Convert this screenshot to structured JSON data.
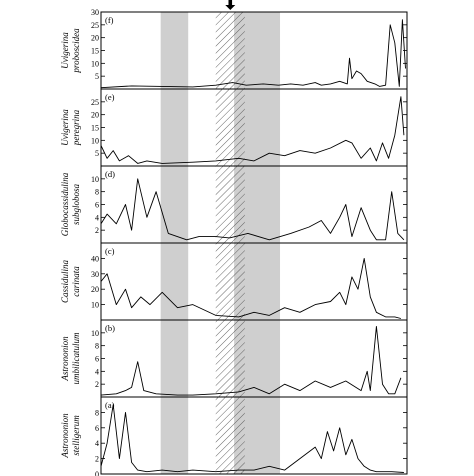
{
  "chart_data": {
    "type": "line",
    "shading": {
      "gray_bands": [
        [
          0.195,
          0.285
        ],
        [
          0.435,
          0.585
        ]
      ],
      "hatched_band": [
        0.375,
        0.47
      ],
      "band_fill": "#cfcfcf",
      "hatch_color": "#555555"
    },
    "marker": "down-arrow",
    "x_range": [
      0,
      1
    ],
    "panels": [
      {
        "letter": "(f)",
        "label_line1": "Uvigerina",
        "label_line2": "proboscidea",
        "ylim": [
          0,
          30
        ],
        "ticks": [
          0,
          5,
          10,
          15,
          20,
          25,
          30
        ],
        "tick_labels": [
          "",
          "5",
          "10",
          "15",
          "20",
          "25",
          "30"
        ],
        "x": [
          0.0,
          0.1,
          0.2,
          0.3,
          0.375,
          0.43,
          0.475,
          0.53,
          0.58,
          0.62,
          0.66,
          0.7,
          0.72,
          0.75,
          0.78,
          0.805,
          0.812,
          0.82,
          0.835,
          0.85,
          0.87,
          0.895,
          0.91,
          0.93,
          0.945,
          0.96,
          0.975,
          0.985,
          0.995
        ],
        "y": [
          0.5,
          1.2,
          1.0,
          0.8,
          1.5,
          2.5,
          1.5,
          2.0,
          1.5,
          2.0,
          1.5,
          2.5,
          1.5,
          2.0,
          3.0,
          2.0,
          12.0,
          4.0,
          7.0,
          6.0,
          3.0,
          2.0,
          1.0,
          1.5,
          25.0,
          18.0,
          1.0,
          27.0,
          8.0
        ]
      },
      {
        "letter": "(e)",
        "label_line1": "Uvigerina",
        "label_line2": "peregrina",
        "ylim": [
          0,
          30
        ],
        "ticks": [
          0,
          5,
          10,
          15,
          20,
          25
        ],
        "tick_labels": [
          "",
          "5",
          "10",
          "15",
          "20",
          "25"
        ],
        "x": [
          0.0,
          0.02,
          0.04,
          0.06,
          0.09,
          0.12,
          0.15,
          0.2,
          0.3,
          0.375,
          0.45,
          0.5,
          0.55,
          0.6,
          0.65,
          0.7,
          0.75,
          0.8,
          0.82,
          0.85,
          0.88,
          0.9,
          0.92,
          0.94,
          0.96,
          0.98,
          0.99
        ],
        "y": [
          8.0,
          3.0,
          6.0,
          2.0,
          4.0,
          1.0,
          2.0,
          1.0,
          1.5,
          2.0,
          3.0,
          2.0,
          5.0,
          4.0,
          6.0,
          5.0,
          7.0,
          10.0,
          9.0,
          3.0,
          7.0,
          2.0,
          9.0,
          3.0,
          12.0,
          27.0,
          12.0
        ]
      },
      {
        "letter": "(d)",
        "label_line1": "Globocassidulina",
        "label_line2": "subglobosa",
        "ylim": [
          0,
          12
        ],
        "ticks": [
          0,
          2,
          4,
          6,
          8,
          10
        ],
        "tick_labels": [
          "",
          "2",
          "4",
          "6",
          "8",
          "10"
        ],
        "x": [
          0.0,
          0.02,
          0.05,
          0.08,
          0.1,
          0.12,
          0.15,
          0.18,
          0.22,
          0.28,
          0.32,
          0.375,
          0.42,
          0.48,
          0.55,
          0.62,
          0.68,
          0.72,
          0.75,
          0.78,
          0.8,
          0.82,
          0.85,
          0.88,
          0.9,
          0.93,
          0.95,
          0.97,
          0.99
        ],
        "y": [
          3.0,
          4.5,
          3.0,
          6.0,
          2.0,
          10.0,
          4.0,
          8.0,
          1.5,
          0.5,
          1.0,
          1.0,
          0.8,
          1.5,
          0.5,
          1.5,
          2.5,
          3.5,
          1.5,
          4.0,
          6.0,
          1.0,
          5.5,
          2.0,
          0.5,
          0.5,
          8.0,
          1.5,
          0.5
        ]
      },
      {
        "letter": "(c)",
        "label_line1": "Cassidulina",
        "label_line2": "carinata",
        "ylim": [
          0,
          50
        ],
        "ticks": [
          0,
          10,
          20,
          30,
          40
        ],
        "tick_labels": [
          "",
          "10",
          "20",
          "30",
          "40"
        ],
        "x": [
          0.0,
          0.02,
          0.05,
          0.08,
          0.1,
          0.13,
          0.16,
          0.2,
          0.25,
          0.3,
          0.375,
          0.45,
          0.5,
          0.55,
          0.6,
          0.65,
          0.7,
          0.75,
          0.78,
          0.8,
          0.82,
          0.84,
          0.86,
          0.88,
          0.9,
          0.93,
          0.96,
          0.98
        ],
        "y": [
          25.0,
          30.0,
          10.0,
          20.0,
          8.0,
          15.0,
          10.0,
          18.0,
          8.0,
          10.0,
          3.0,
          2.0,
          5.0,
          3.0,
          8.0,
          5.0,
          10.0,
          12.0,
          18.0,
          10.0,
          28.0,
          20.0,
          40.0,
          15.0,
          5.0,
          2.0,
          2.0,
          1.0
        ]
      },
      {
        "letter": "(b)",
        "label_line1": "Astrononion",
        "label_line2": "umbilicatulum",
        "ylim": [
          0,
          12
        ],
        "ticks": [
          0,
          2,
          4,
          6,
          8,
          10
        ],
        "tick_labels": [
          "",
          "2",
          "4",
          "6",
          "8",
          "10"
        ],
        "x": [
          0.0,
          0.05,
          0.08,
          0.1,
          0.12,
          0.14,
          0.18,
          0.25,
          0.3,
          0.375,
          0.45,
          0.5,
          0.55,
          0.6,
          0.65,
          0.7,
          0.75,
          0.8,
          0.85,
          0.87,
          0.88,
          0.9,
          0.92,
          0.94,
          0.96,
          0.98
        ],
        "y": [
          0.3,
          0.5,
          1.0,
          1.5,
          5.5,
          1.0,
          0.5,
          0.3,
          0.3,
          0.5,
          0.8,
          1.5,
          0.5,
          2.0,
          1.0,
          2.5,
          1.5,
          2.5,
          1.0,
          4.0,
          1.0,
          11.0,
          2.0,
          0.5,
          0.5,
          3.0
        ]
      },
      {
        "letter": "(a)",
        "label_line1": "Astrononion",
        "label_line2": "stelligerum",
        "ylim": [
          0,
          10
        ],
        "ticks": [
          0,
          2,
          4,
          6,
          8
        ],
        "tick_labels": [
          "0",
          "2",
          "4",
          "6",
          "8"
        ],
        "x": [
          0.0,
          0.02,
          0.04,
          0.06,
          0.08,
          0.1,
          0.12,
          0.15,
          0.2,
          0.25,
          0.3,
          0.375,
          0.45,
          0.5,
          0.55,
          0.6,
          0.65,
          0.7,
          0.72,
          0.74,
          0.76,
          0.78,
          0.8,
          0.82,
          0.84,
          0.86,
          0.88,
          0.9,
          0.95,
          0.99
        ],
        "y": [
          1.0,
          4.0,
          9.0,
          2.0,
          8.0,
          1.5,
          0.5,
          0.3,
          0.5,
          0.3,
          0.5,
          0.3,
          0.5,
          0.5,
          1.0,
          0.5,
          2.0,
          3.5,
          2.0,
          5.5,
          3.0,
          6.0,
          2.5,
          4.5,
          2.0,
          1.0,
          0.5,
          0.3,
          0.3,
          0.2
        ]
      }
    ]
  }
}
